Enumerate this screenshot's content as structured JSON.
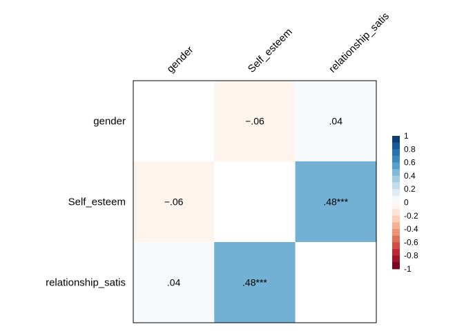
{
  "chart_data": {
    "type": "heatmap",
    "variables": [
      "gender",
      "Self_esteem",
      "relationship_satis"
    ],
    "matrix": [
      [
        1.0,
        -0.06,
        0.04
      ],
      [
        -0.06,
        1.0,
        0.48
      ],
      [
        0.04,
        0.48,
        1.0
      ]
    ],
    "cell_labels": [
      [
        "",
        "−.06",
        ".04"
      ],
      [
        "−.06",
        "",
        ".48***"
      ],
      [
        ".04",
        ".48***",
        ""
      ]
    ],
    "show_diagonal": false,
    "colorbar": {
      "range": [
        -1,
        1
      ],
      "ticks": [
        "1",
        "0.8",
        "0.6",
        "0.4",
        "0.2",
        "0",
        "-0.2",
        "-0.4",
        "-0.6",
        "-0.8",
        "-1"
      ],
      "steps": 20,
      "palette": [
        "#67001F",
        "#B2182B",
        "#D6604D",
        "#F4A582",
        "#FDDBC7",
        "#FFFFFF",
        "#D1E5F0",
        "#92C5DE",
        "#4393C3",
        "#2166AC",
        "#053061"
      ]
    },
    "legend_position": "right"
  }
}
